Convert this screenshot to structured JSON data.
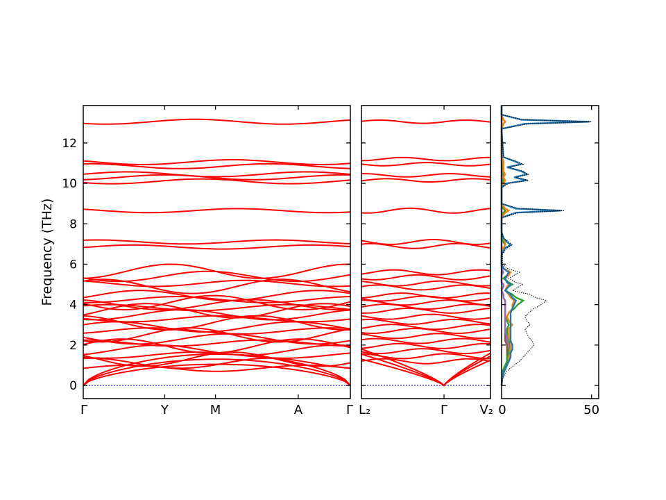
{
  "chart_data": {
    "type": "line",
    "ylabel": "Frequency (THz)",
    "ylim": [
      -0.65,
      13.85
    ],
    "yticks": [
      0,
      2,
      4,
      6,
      8,
      10,
      12
    ],
    "grid": false,
    "legend": "none",
    "colors": {
      "bands": "#ff0000",
      "zero_line": "#0000ff",
      "dos_total": "#000000",
      "pdos_1": "#1f77b4",
      "pdos_2": "#ff7f0e",
      "pdos_3": "#2ca02c",
      "pdos_4": "#9467bd",
      "pdos_5": "#8c564b"
    },
    "band_panel_1": {
      "path_labels": [
        "Γ",
        "Y",
        "M",
        "A",
        "Γ"
      ],
      "path_positions": [
        0,
        0.305,
        0.495,
        0.805,
        1
      ],
      "flat_bands": [
        0.85,
        1.1,
        1.3,
        1.5,
        1.75,
        1.95,
        2.1,
        2.3,
        2.5,
        2.7,
        2.9,
        3.1,
        3.3,
        3.5,
        3.7,
        3.85,
        4.0,
        4.1,
        4.25,
        4.45,
        4.9,
        5.05,
        5.4,
        5.65,
        6.85,
        7.1,
        8.65,
        10.1,
        10.3,
        10.45,
        10.85,
        11.05,
        13.05
      ],
      "acoustic_branches": [
        {
          "gamma": 0,
          "zone": 1.05
        },
        {
          "gamma": 0,
          "zone": 1.3
        },
        {
          "gamma": 0,
          "zone": 1.55
        }
      ]
    },
    "band_panel_2": {
      "path_labels": [
        "L₂",
        "Γ",
        "V₂"
      ],
      "path_positions": [
        0,
        0.64,
        1
      ],
      "flat_bands": [
        1.2,
        1.45,
        1.7,
        1.95,
        2.2,
        2.45,
        2.7,
        2.9,
        3.15,
        3.4,
        3.7,
        3.9,
        4.1,
        4.3,
        4.45,
        4.85,
        5.05,
        5.35,
        5.6,
        6.9,
        7.1,
        8.65,
        10.15,
        10.4,
        10.95,
        11.2,
        13.05
      ],
      "acoustic_branches": [
        {
          "left": 1.3,
          "right": 1.25
        },
        {
          "left": 1.55,
          "right": 1.45
        },
        {
          "left": 1.8,
          "right": 1.6
        }
      ]
    },
    "dos_panel": {
      "xlim": [
        0,
        54
      ],
      "xticks": [
        0,
        50
      ],
      "freq": [
        0.0,
        0.3,
        0.6,
        0.8,
        1.0,
        1.2,
        1.4,
        1.6,
        1.8,
        2.0,
        2.2,
        2.4,
        2.6,
        2.8,
        3.0,
        3.2,
        3.4,
        3.6,
        3.8,
        4.0,
        4.2,
        4.35,
        4.5,
        4.7,
        4.9,
        5.0,
        5.1,
        5.3,
        5.45,
        5.6,
        5.8,
        6.0,
        6.5,
        6.8,
        6.95,
        7.1,
        7.3,
        7.6,
        8.3,
        8.55,
        8.65,
        8.75,
        9.0,
        9.8,
        10.0,
        10.15,
        10.3,
        10.45,
        10.6,
        10.8,
        10.95,
        11.1,
        11.3,
        12.7,
        12.95,
        13.05,
        13.15,
        13.4,
        13.85
      ],
      "total": [
        0,
        0.5,
        2,
        4,
        7,
        10,
        12,
        14,
        16,
        18,
        17,
        15,
        14,
        13,
        16,
        14,
        13,
        15,
        18,
        22,
        25,
        19,
        16,
        6,
        10,
        12,
        8,
        4,
        7,
        10,
        3,
        0.5,
        0.5,
        3,
        6,
        4,
        1,
        0,
        0,
        10,
        35,
        10,
        0,
        0,
        4,
        15,
        8,
        15,
        12,
        4,
        12,
        8,
        1,
        0,
        15,
        50,
        12,
        0,
        0
      ],
      "projected": [
        {
          "values": [
            0,
            0.3,
            1,
            2,
            3,
            4,
            5,
            5,
            6,
            6,
            5,
            5,
            5,
            5,
            5,
            5,
            5,
            5,
            6,
            7,
            8,
            6,
            5,
            2,
            4,
            5,
            3,
            2,
            3,
            4,
            1,
            0,
            0,
            2,
            5,
            3,
            1,
            0,
            0,
            8,
            33,
            8,
            0,
            0,
            3,
            14,
            7,
            14,
            11,
            3,
            11,
            7,
            1,
            0,
            13,
            49,
            11,
            0,
            0
          ]
        },
        {
          "values": [
            0,
            0.2,
            1,
            2,
            3,
            4,
            4,
            5,
            5,
            5,
            5,
            4,
            4,
            4,
            6,
            4,
            3,
            4,
            6,
            6,
            7,
            5,
            4,
            2,
            3,
            4,
            3,
            2,
            4,
            5,
            1,
            0,
            0,
            1,
            2,
            2,
            1,
            0,
            0,
            2,
            4,
            2,
            0,
            0,
            1,
            2,
            1,
            2,
            1,
            1,
            1,
            1,
            0,
            0,
            1,
            2,
            1,
            0,
            0
          ]
        },
        {
          "values": [
            0,
            0.1,
            0.5,
            1,
            2,
            3,
            3,
            4,
            4,
            5,
            4,
            4,
            3,
            3,
            4,
            3,
            3,
            4,
            7,
            9,
            12,
            8,
            6,
            2,
            4,
            6,
            4,
            1,
            3,
            4,
            1,
            0,
            0,
            1,
            2,
            1,
            0,
            0,
            0,
            1,
            2,
            1,
            0,
            0,
            0,
            1,
            1,
            1,
            1,
            0,
            1,
            1,
            0,
            0,
            1,
            2,
            1,
            0,
            0
          ]
        },
        {
          "values": [
            0,
            0.3,
            1,
            2,
            3,
            4,
            4,
            4,
            4,
            4,
            3,
            3,
            2,
            2,
            2,
            2,
            2,
            2,
            2,
            2,
            2,
            1,
            1,
            0,
            1,
            1,
            0,
            0,
            0,
            1,
            0,
            0,
            0,
            0,
            0,
            0,
            0,
            0,
            0,
            0,
            0,
            0,
            0,
            0,
            0,
            0,
            0,
            0,
            0,
            0,
            0,
            0,
            0,
            0,
            0,
            0,
            0,
            0,
            0
          ]
        },
        {
          "values": [
            0,
            0.3,
            1,
            2,
            3,
            3,
            3,
            3,
            3,
            3,
            2,
            2,
            2,
            2,
            2,
            2,
            2,
            2,
            2,
            2,
            2,
            1,
            1,
            0,
            1,
            1,
            0,
            0,
            0,
            0,
            0,
            0,
            0,
            0,
            0,
            0,
            0,
            0,
            0,
            0,
            0,
            0,
            0,
            0,
            0,
            0,
            0,
            0,
            0,
            0,
            0,
            0,
            0,
            0,
            0,
            0,
            0,
            0,
            0
          ]
        }
      ]
    }
  }
}
